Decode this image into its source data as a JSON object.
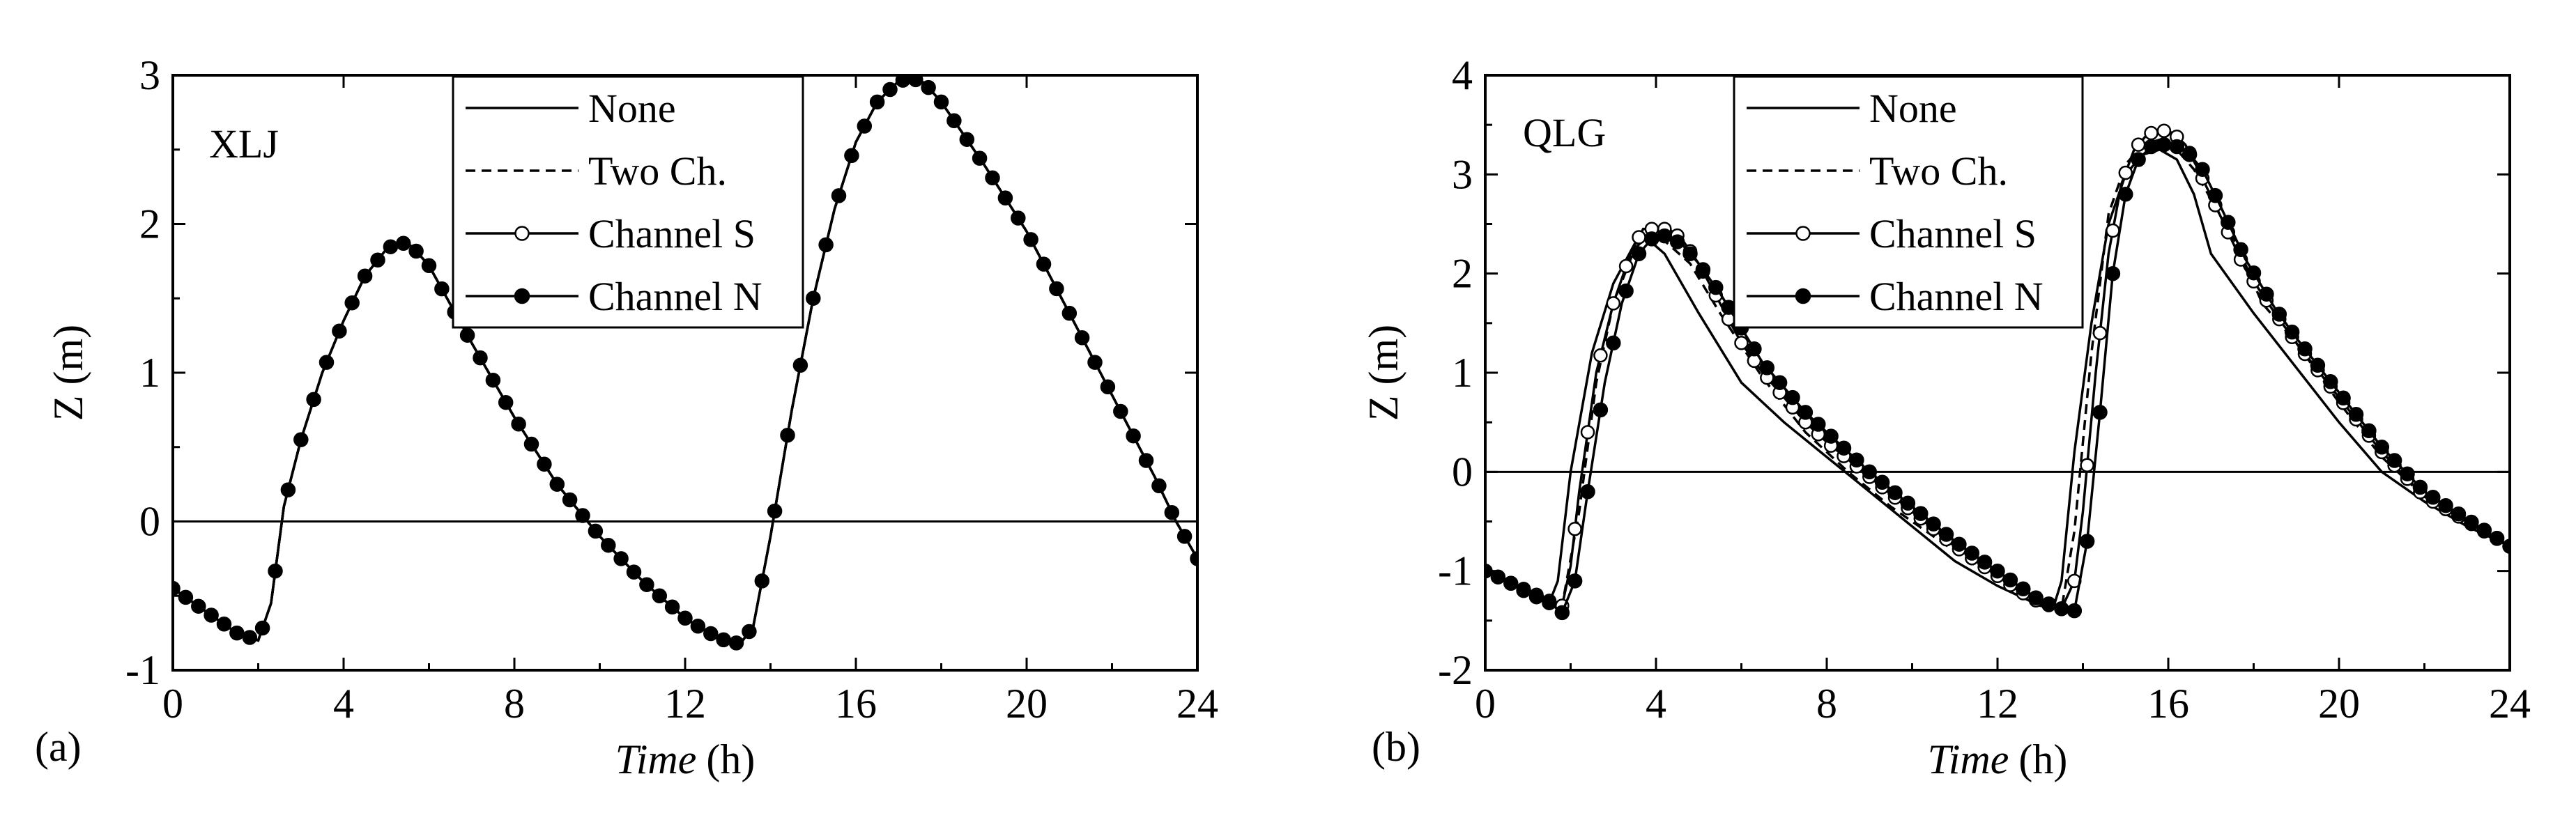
{
  "chart_data": [
    {
      "type": "line",
      "panel_label": "(a)",
      "station": "XLJ",
      "xlabel": "Time",
      "xlabel_unit": "(h)",
      "ylabel": "Z (m)",
      "xlim": [
        0,
        24
      ],
      "ylim": [
        -1,
        3
      ],
      "xticks": [
        0,
        4,
        8,
        12,
        16,
        20,
        24
      ],
      "yticks": [
        -1,
        0,
        1,
        2,
        3
      ],
      "xtick_labels": [
        "0",
        "4",
        "8",
        "12",
        "16",
        "20",
        "24"
      ],
      "ytick_labels": [
        "-1",
        "0",
        "1",
        "2",
        "3"
      ],
      "zero_line": true,
      "grid": false,
      "legend_position": "top-center",
      "series": [
        {
          "name": "None",
          "style": "solid-line",
          "x": [
            0,
            0.5,
            1.0,
            1.5,
            2.0,
            2.3,
            2.6,
            3.0,
            3.5,
            4.0,
            4.5,
            5.0,
            5.3,
            5.6,
            6.0,
            7.0,
            8.0,
            9.0,
            10.0,
            11.0,
            12.0,
            12.5,
            13.0,
            13.3,
            13.6,
            14.0,
            14.5,
            15.0,
            15.5,
            16.0,
            16.5,
            17.0,
            17.3,
            17.6,
            18.0,
            19.0,
            20.0,
            21.0,
            22.0,
            23.0,
            23.5,
            24.0
          ],
          "y": [
            -0.45,
            -0.55,
            -0.65,
            -0.75,
            -0.8,
            -0.55,
            0.1,
            0.55,
            1.0,
            1.35,
            1.65,
            1.83,
            1.88,
            1.85,
            1.72,
            1.2,
            0.7,
            0.25,
            -0.1,
            -0.4,
            -0.65,
            -0.74,
            -0.81,
            -0.82,
            -0.7,
            -0.1,
            0.75,
            1.5,
            2.1,
            2.55,
            2.82,
            2.96,
            2.98,
            2.95,
            2.82,
            2.4,
            1.95,
            1.4,
            0.85,
            0.3,
            0.0,
            -0.25
          ]
        },
        {
          "name": "Two Ch.",
          "style": "dashed-line",
          "x": [
            0,
            0.5,
            1.0,
            1.5,
            2.0,
            2.3,
            2.6,
            3.0,
            3.5,
            4.0,
            4.5,
            5.0,
            5.3,
            5.6,
            6.0,
            7.0,
            8.0,
            9.0,
            10.0,
            11.0,
            12.0,
            12.5,
            13.0,
            13.3,
            13.6,
            14.0,
            14.5,
            15.0,
            15.5,
            16.0,
            16.5,
            17.0,
            17.3,
            17.6,
            18.0,
            19.0,
            20.0,
            21.0,
            22.0,
            23.0,
            23.5,
            24.0
          ],
          "y": [
            -0.45,
            -0.55,
            -0.65,
            -0.75,
            -0.8,
            -0.55,
            0.1,
            0.55,
            1.0,
            1.35,
            1.65,
            1.83,
            1.88,
            1.85,
            1.72,
            1.2,
            0.7,
            0.25,
            -0.1,
            -0.4,
            -0.65,
            -0.74,
            -0.81,
            -0.82,
            -0.7,
            -0.1,
            0.75,
            1.5,
            2.1,
            2.55,
            2.82,
            2.96,
            2.98,
            2.95,
            2.82,
            2.4,
            1.95,
            1.4,
            0.85,
            0.3,
            0.0,
            -0.25
          ]
        },
        {
          "name": "Channel S",
          "style": "long-dash-open-circles",
          "x": [
            0,
            0.5,
            1.0,
            1.5,
            2.0,
            2.3,
            2.6,
            3.0,
            3.5,
            4.0,
            4.5,
            5.0,
            5.3,
            5.6,
            6.0,
            7.0,
            8.0,
            9.0,
            10.0,
            11.0,
            12.0,
            12.5,
            13.0,
            13.3,
            13.6,
            14.0,
            14.5,
            15.0,
            15.5,
            16.0,
            16.5,
            17.0,
            17.3,
            17.6,
            18.0,
            19.0,
            20.0,
            21.0,
            22.0,
            23.0,
            23.5,
            24.0
          ],
          "y": [
            -0.45,
            -0.55,
            -0.65,
            -0.75,
            -0.8,
            -0.55,
            0.1,
            0.55,
            1.0,
            1.35,
            1.65,
            1.83,
            1.88,
            1.85,
            1.72,
            1.2,
            0.7,
            0.25,
            -0.1,
            -0.4,
            -0.65,
            -0.74,
            -0.81,
            -0.82,
            -0.7,
            -0.1,
            0.75,
            1.5,
            2.1,
            2.55,
            2.82,
            2.96,
            2.98,
            2.95,
            2.82,
            2.4,
            1.95,
            1.4,
            0.85,
            0.3,
            0.0,
            -0.25
          ]
        },
        {
          "name": "Channel N",
          "style": "long-dash-filled-circles",
          "x": [
            0,
            0.5,
            1.0,
            1.5,
            2.0,
            2.3,
            2.6,
            3.0,
            3.5,
            4.0,
            4.5,
            5.0,
            5.3,
            5.6,
            6.0,
            7.0,
            8.0,
            9.0,
            10.0,
            11.0,
            12.0,
            12.5,
            13.0,
            13.3,
            13.6,
            14.0,
            14.5,
            15.0,
            15.5,
            16.0,
            16.5,
            17.0,
            17.3,
            17.6,
            18.0,
            19.0,
            20.0,
            21.0,
            22.0,
            23.0,
            23.5,
            24.0
          ],
          "y": [
            -0.45,
            -0.55,
            -0.65,
            -0.75,
            -0.8,
            -0.55,
            0.1,
            0.55,
            1.0,
            1.35,
            1.65,
            1.83,
            1.88,
            1.85,
            1.72,
            1.2,
            0.7,
            0.25,
            -0.1,
            -0.4,
            -0.65,
            -0.74,
            -0.81,
            -0.82,
            -0.7,
            -0.1,
            0.75,
            1.5,
            2.1,
            2.55,
            2.82,
            2.96,
            2.98,
            2.95,
            2.82,
            2.4,
            1.95,
            1.4,
            0.85,
            0.3,
            0.0,
            -0.25
          ]
        }
      ]
    },
    {
      "type": "line",
      "panel_label": "(b)",
      "station": "QLG",
      "xlabel": "Time",
      "xlabel_unit": "(h)",
      "ylabel": "Z (m)",
      "xlim": [
        0,
        24
      ],
      "ylim": [
        -2,
        4
      ],
      "xticks": [
        0,
        4,
        8,
        12,
        16,
        20,
        24
      ],
      "yticks": [
        -2,
        -1,
        0,
        1,
        2,
        3,
        4
      ],
      "xtick_labels": [
        "0",
        "4",
        "8",
        "12",
        "16",
        "20",
        "24"
      ],
      "ytick_labels": [
        "-2",
        "-1",
        "0",
        "1",
        "2",
        "3",
        "4"
      ],
      "zero_line": true,
      "grid": false,
      "legend_position": "top-center",
      "series": [
        {
          "name": "None",
          "style": "solid-line",
          "x": [
            0,
            0.5,
            1.0,
            1.5,
            1.7,
            2.0,
            2.5,
            3.0,
            3.5,
            3.8,
            4.2,
            5.0,
            6.0,
            7.0,
            8.0,
            9.0,
            10.0,
            11.0,
            12.0,
            13.0,
            13.3,
            13.5,
            13.8,
            14.2,
            14.6,
            15.0,
            15.4,
            15.8,
            16.2,
            16.6,
            17.0,
            18.0,
            19.0,
            20.0,
            21.0,
            22.0,
            23.0,
            24.0
          ],
          "y": [
            -1.0,
            -1.1,
            -1.2,
            -1.32,
            -1.1,
            0.0,
            1.2,
            1.9,
            2.3,
            2.35,
            2.2,
            1.6,
            0.9,
            0.5,
            0.15,
            -0.2,
            -0.55,
            -0.9,
            -1.15,
            -1.35,
            -1.38,
            -1.1,
            0.2,
            1.5,
            2.5,
            3.0,
            3.2,
            3.25,
            3.15,
            2.8,
            2.2,
            1.6,
            1.05,
            0.5,
            0.0,
            -0.3,
            -0.55,
            -0.75
          ]
        },
        {
          "name": "Two Ch.",
          "style": "dashed-line",
          "x": [
            0,
            0.5,
            1.0,
            1.5,
            1.8,
            2.2,
            2.6,
            3.0,
            3.5,
            3.8,
            4.2,
            4.8,
            5.5,
            6.5,
            7.5,
            8.5,
            9.5,
            10.5,
            11.5,
            12.5,
            13.5,
            13.8,
            14.2,
            14.6,
            15.0,
            15.4,
            15.8,
            16.2,
            16.6,
            17.0,
            17.6,
            18.2,
            19.0,
            20.0,
            21.0,
            22.0,
            23.0,
            24.0
          ],
          "y": [
            -1.0,
            -1.1,
            -1.2,
            -1.3,
            -1.35,
            -0.4,
            0.9,
            1.7,
            2.25,
            2.38,
            2.33,
            2.1,
            1.6,
            0.95,
            0.4,
            0.0,
            -0.35,
            -0.65,
            -0.95,
            -1.2,
            -1.38,
            -0.6,
            1.2,
            2.6,
            3.1,
            3.3,
            3.35,
            3.25,
            3.05,
            2.75,
            2.3,
            1.7,
            1.3,
            0.7,
            0.15,
            -0.25,
            -0.5,
            -0.75
          ]
        },
        {
          "name": "Channel S",
          "style": "long-dash-open-circles",
          "x": [
            0,
            0.5,
            1.0,
            1.5,
            1.8,
            2.0,
            2.2,
            2.6,
            3.0,
            3.4,
            3.7,
            4.0,
            4.3,
            4.6,
            5.0,
            5.5,
            6.0,
            6.5,
            7.0,
            7.5,
            8.0,
            9.0,
            10.0,
            11.0,
            12.0,
            12.5,
            13.0,
            13.5,
            13.8,
            14.0,
            14.3,
            14.6,
            14.9,
            15.2,
            15.5,
            15.8,
            16.1,
            16.4,
            16.7,
            17.2,
            17.8,
            18.5,
            19.0,
            20.0,
            21.0,
            22.0,
            23.0,
            24.0
          ],
          "y": [
            -1.0,
            -1.1,
            -1.2,
            -1.3,
            -1.35,
            -0.95,
            -0.2,
            1.0,
            1.7,
            2.2,
            2.45,
            2.45,
            2.45,
            2.35,
            2.1,
            1.7,
            1.3,
            1.0,
            0.75,
            0.5,
            0.3,
            -0.05,
            -0.4,
            -0.75,
            -1.05,
            -1.2,
            -1.32,
            -1.38,
            -1.1,
            -0.4,
            1.0,
            2.2,
            2.9,
            3.25,
            3.4,
            3.45,
            3.42,
            3.3,
            3.05,
            2.6,
            2.05,
            1.6,
            1.3,
            0.75,
            0.2,
            -0.25,
            -0.5,
            -0.75
          ]
        },
        {
          "name": "Channel N",
          "style": "long-dash-filled-circles",
          "x": [
            0,
            0.5,
            1.0,
            1.5,
            1.8,
            2.1,
            2.4,
            2.8,
            3.2,
            3.6,
            3.9,
            4.2,
            4.6,
            5.0,
            5.5,
            6.0,
            6.5,
            7.0,
            7.5,
            8.0,
            9.0,
            10.0,
            11.0,
            12.0,
            12.5,
            13.0,
            13.5,
            13.8,
            14.1,
            14.4,
            14.7,
            15.0,
            15.3,
            15.6,
            15.9,
            16.2,
            16.5,
            16.8,
            17.2,
            17.8,
            18.5,
            19.0,
            20.0,
            21.0,
            22.0,
            23.0,
            24.0
          ],
          "y": [
            -1.0,
            -1.1,
            -1.22,
            -1.32,
            -1.42,
            -1.1,
            -0.2,
            0.9,
            1.7,
            2.2,
            2.35,
            2.38,
            2.3,
            2.1,
            1.8,
            1.45,
            1.1,
            0.85,
            0.6,
            0.4,
            0.0,
            -0.35,
            -0.7,
            -1.0,
            -1.15,
            -1.3,
            -1.38,
            -1.4,
            -0.7,
            0.6,
            2.0,
            2.8,
            3.15,
            3.28,
            3.3,
            3.28,
            3.2,
            3.05,
            2.7,
            2.15,
            1.65,
            1.35,
            0.8,
            0.25,
            -0.2,
            -0.48,
            -0.75
          ]
        }
      ]
    }
  ]
}
